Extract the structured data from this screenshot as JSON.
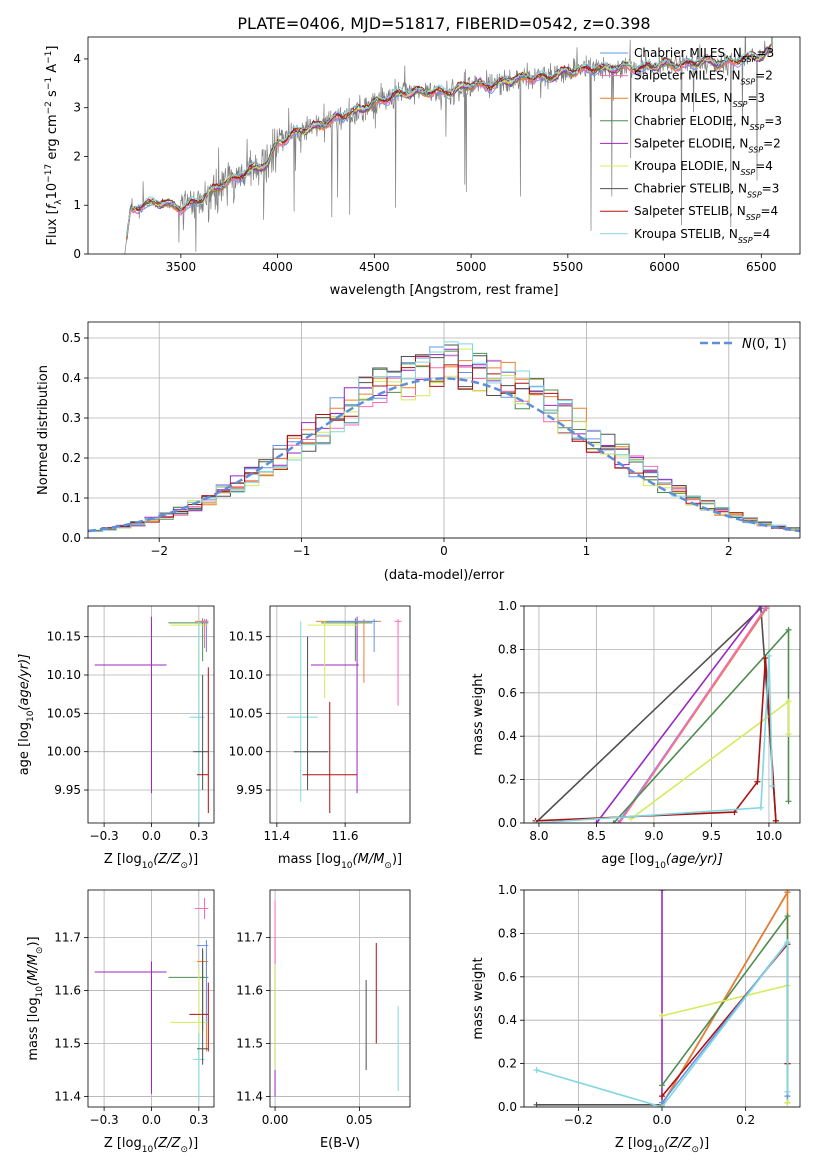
{
  "figure": {
    "title": "PLATE=0406, MJD=51817, FIBERID=0542, z=0.398"
  },
  "colors": {
    "Chabrier MILES": "#6495ed",
    "Salpeter MILES": "#ff69b4",
    "Kroupa MILES": "#ee7f2d",
    "Chabrier ELODIE": "#4e8c4e",
    "Salpeter ELODIE": "#9b27c2",
    "Kroupa ELODIE": "#d4ec5a",
    "Chabrier STELIB": "#505050",
    "Salpeter STELIB": "#b01010",
    "Kroupa STELIB": "#80d8e0",
    "data": "#808080",
    "normal": "#5f8fd9",
    "grid": "#b0b0b0"
  },
  "chart_data": [
    {
      "id": "spectrum",
      "type": "line",
      "xlabel": "wavelength [Angstrom, rest frame]",
      "ylabel_parts": [
        "Flux [",
        "f",
        "λ",
        "10",
        "−17",
        " erg cm",
        "−2",
        " s",
        "−1",
        " A",
        "−1",
        "]"
      ],
      "xlim": [
        3020,
        6700
      ],
      "ylim": [
        0,
        4.45
      ],
      "xticks": [
        3500,
        4000,
        4500,
        5000,
        5500,
        6000,
        6500
      ],
      "yticks": [
        0,
        1,
        2,
        3,
        4
      ],
      "grid": false,
      "legend_position": "upper-right",
      "legend": [
        {
          "model": "Chabrier MILES",
          "label_main": "Chabrier MILES, N",
          "label_sub": "SSP",
          "label_end": "=3"
        },
        {
          "model": "Salpeter MILES",
          "label_main": "Salpeter MILES, N",
          "label_sub": "SSP",
          "label_end": "=2"
        },
        {
          "model": "Kroupa MILES",
          "label_main": "Kroupa MILES, N",
          "label_sub": "SSP",
          "label_end": "=3"
        },
        {
          "model": "Chabrier ELODIE",
          "label_main": "Chabrier ELODIE, N",
          "label_sub": "SSP",
          "label_end": "=3"
        },
        {
          "model": "Salpeter ELODIE",
          "label_main": "Salpeter ELODIE, N",
          "label_sub": "SSP",
          "label_end": "=2"
        },
        {
          "model": "Kroupa ELODIE",
          "label_main": "Kroupa ELODIE, N",
          "label_sub": "SSP",
          "label_end": "=4"
        },
        {
          "model": "Chabrier STELIB",
          "label_main": "Chabrier STELIB, N",
          "label_sub": "SSP",
          "label_end": "=3"
        },
        {
          "model": "Salpeter STELIB",
          "label_main": "Salpeter STELIB, N",
          "label_sub": "SSP",
          "label_end": "=4"
        },
        {
          "model": "Kroupa STELIB",
          "label_main": "Kroupa STELIB, N",
          "label_sub": "SSP",
          "label_end": "=4"
        }
      ],
      "continuum_anchors": {
        "wavelength": [
          3210,
          3240,
          3300,
          3400,
          3500,
          3600,
          3700,
          3800,
          3850,
          3950,
          4000,
          4100,
          4200,
          4300,
          4400,
          4500,
          4600,
          4700,
          4800,
          4900,
          5000,
          5100,
          5200,
          5300,
          5400,
          5500,
          5600,
          5700,
          5800,
          5900,
          6000,
          6100,
          6200,
          6300,
          6400,
          6500,
          6560
        ],
        "flux": [
          0.0,
          0.9,
          1.0,
          1.05,
          0.95,
          1.1,
          1.4,
          1.6,
          1.7,
          1.85,
          2.3,
          2.5,
          2.6,
          2.8,
          2.9,
          3.1,
          3.25,
          3.3,
          3.35,
          3.3,
          3.5,
          3.45,
          3.55,
          3.65,
          3.6,
          3.75,
          3.8,
          3.78,
          3.85,
          3.8,
          3.9,
          3.88,
          3.95,
          3.92,
          4.0,
          4.05,
          4.2
        ]
      }
    },
    {
      "id": "residuals",
      "type": "histogram",
      "xlabel": "(data-model)/error",
      "ylabel": "Normed distribution",
      "xlim": [
        -2.5,
        2.5
      ],
      "ylim": [
        0,
        0.54
      ],
      "xticks": [
        -2,
        -1,
        0,
        1,
        2
      ],
      "yticks": [
        0.0,
        0.1,
        0.2,
        0.3,
        0.4,
        0.5
      ],
      "grid": true,
      "legend_position": "upper-right",
      "legend": [
        {
          "label_sym": "N",
          "label_rest": "(0, 1)"
        }
      ],
      "bin_width": 0.1
    },
    {
      "id": "age_vs_Z",
      "type": "errorbar",
      "xlabel_parts": [
        "Z [log",
        "10",
        "(Z/Z",
        "⊙",
        ")]"
      ],
      "ylabel_parts": [
        "age  [log",
        "10",
        "(age/yr)]"
      ],
      "xlim": [
        -0.335,
        0.33
      ],
      "ylim": [
        9.907,
        10.19
      ],
      "xticks": [
        -0.25,
        0.0,
        0.25
      ],
      "yticks": [
        9.95,
        10.0,
        10.05,
        10.1,
        10.15
      ],
      "grid": true,
      "points": [
        {
          "model": "Salpeter ELODIE",
          "x": 0.0,
          "xerr": [
            0.3,
            0.08
          ],
          "y": 10.113,
          "yerr": [
            0.167,
            0.063
          ]
        },
        {
          "model": "Chabrier ELODIE",
          "x": 0.27,
          "xerr": [
            0.18,
            0.03
          ],
          "y": 10.168,
          "yerr": [
            0.05,
            0.006
          ]
        },
        {
          "model": "Kroupa MILES",
          "x": 0.29,
          "xerr": [
            0.06,
            0.01
          ],
          "y": 10.17,
          "yerr": [
            0.04,
            0.003
          ]
        },
        {
          "model": "Chabrier MILES",
          "x": 0.29,
          "xerr": [
            0.03,
            0.01
          ],
          "y": 10.17,
          "yerr": [
            0.04,
            0.003
          ]
        },
        {
          "model": "Kroupa ELODIE",
          "x": 0.25,
          "xerr": [
            0.15,
            0.05
          ],
          "y": 10.165,
          "yerr": [
            0.095,
            0.005
          ]
        },
        {
          "model": "Salpeter MILES",
          "x": 0.28,
          "xerr": [
            0.03,
            0.02
          ],
          "y": 10.17,
          "yerr": [
            0.035,
            0.003
          ]
        },
        {
          "model": "Kroupa STELIB",
          "x": 0.25,
          "xerr": [
            0.05,
            0.03
          ],
          "y": 10.045,
          "yerr": [
            0.17,
            0.125
          ]
        },
        {
          "model": "Chabrier STELIB",
          "x": 0.27,
          "xerr": [
            0.05,
            0.03
          ],
          "y": 10.0,
          "yerr": [
            0.05,
            0.1
          ]
        },
        {
          "model": "Salpeter STELIB",
          "x": 0.3,
          "xerr": [
            0.06,
            0.0
          ],
          "y": 9.97,
          "yerr": [
            0.05,
            0.14
          ]
        }
      ]
    },
    {
      "id": "age_vs_mass",
      "type": "errorbar",
      "xlabel_parts": [
        "mass [log",
        "10",
        "(M/M",
        "⊙",
        ")]"
      ],
      "xlim": [
        11.38,
        11.79
      ],
      "ylim": [
        9.907,
        10.19
      ],
      "xticks": [
        11.4,
        11.6
      ],
      "yticks": [
        9.95,
        10.0,
        10.05,
        10.1,
        10.15
      ],
      "grid": true,
      "points": [
        {
          "model": "Salpeter ELODIE",
          "x": 11.635,
          "xerr": [
            0.135,
            0.005
          ],
          "y": 10.113,
          "yerr": [
            0.167,
            0.063
          ]
        },
        {
          "model": "Chabrier ELODIE",
          "x": 11.63,
          "xerr": [
            0.1,
            0.05
          ],
          "y": 10.168,
          "yerr": [
            0.05,
            0.006
          ]
        },
        {
          "model": "Kroupa MILES",
          "x": 11.655,
          "xerr": [
            0.14,
            0.05
          ],
          "y": 10.17,
          "yerr": [
            0.08,
            0.003
          ]
        },
        {
          "model": "Chabrier MILES",
          "x": 11.685,
          "xerr": [
            0.14,
            0.01
          ],
          "y": 10.17,
          "yerr": [
            0.04,
            0.003
          ]
        },
        {
          "model": "Kroupa ELODIE",
          "x": 11.54,
          "xerr": [
            0.05,
            0.1
          ],
          "y": 10.165,
          "yerr": [
            0.095,
            0.005
          ]
        },
        {
          "model": "Salpeter MILES",
          "x": 11.755,
          "xerr": [
            0.01,
            0.01
          ],
          "y": 10.17,
          "yerr": [
            0.11,
            0.003
          ]
        },
        {
          "model": "Kroupa STELIB",
          "x": 11.47,
          "xerr": [
            0.04,
            0.05
          ],
          "y": 10.045,
          "yerr": [
            0.11,
            0.125
          ]
        },
        {
          "model": "Chabrier STELIB",
          "x": 11.49,
          "xerr": [
            0.04,
            0.06
          ],
          "y": 10.0,
          "yerr": [
            0.05,
            0.15
          ]
        },
        {
          "model": "Salpeter STELIB",
          "x": 11.555,
          "xerr": [
            0.08,
            0.08
          ],
          "y": 9.97,
          "yerr": [
            0.05,
            0.095
          ]
        }
      ]
    },
    {
      "id": "weight_vs_age",
      "type": "line",
      "xlabel_parts": [
        "age  [log",
        "10",
        "(age/yr)]"
      ],
      "ylabel": "mass weight",
      "xlim": [
        7.87,
        10.27
      ],
      "ylim": [
        0,
        1.0
      ],
      "xticks": [
        8.0,
        8.5,
        9.0,
        9.5,
        10.0
      ],
      "yticks": [
        0.0,
        0.2,
        0.4,
        0.6,
        0.8,
        1.0
      ],
      "grid": true,
      "series": [
        {
          "model": "Chabrier STELIB",
          "x": [
            7.97,
            9.93,
            10.06
          ],
          "y": [
            0.0,
            0.99,
            0.01
          ]
        },
        {
          "model": "Salpeter ELODIE",
          "x": [
            8.5,
            9.93
          ],
          "y": [
            0.0,
            1.0
          ]
        },
        {
          "model": "Kroupa MILES",
          "x": [
            8.7,
            9.98
          ],
          "y": [
            0.0,
            0.99
          ]
        },
        {
          "model": "Chabrier MILES",
          "x": [
            8.69,
            9.97
          ],
          "y": [
            0.0,
            0.99
          ]
        },
        {
          "model": "Salpeter MILES",
          "x": [
            8.7,
            9.98
          ],
          "y": [
            0.0,
            1.0
          ]
        },
        {
          "model": "Chabrier ELODIE",
          "x": [
            8.65,
            10.17,
            10.17
          ],
          "y": [
            0.0,
            0.89,
            0.1
          ]
        },
        {
          "model": "Kroupa ELODIE",
          "x": [
            8.8,
            10.17,
            10.17
          ],
          "y": [
            0.02,
            0.56,
            0.41
          ]
        },
        {
          "model": "Salpeter STELIB",
          "x": [
            7.97,
            9.7,
            9.9,
            9.97,
            10.06
          ],
          "y": [
            0.01,
            0.05,
            0.19,
            0.76,
            0.01
          ]
        },
        {
          "model": "Kroupa STELIB",
          "x": [
            7.97,
            9.93,
            10.0,
            10.03
          ],
          "y": [
            0.0,
            0.07,
            0.77,
            0.17
          ]
        }
      ]
    },
    {
      "id": "mass_vs_Z",
      "type": "errorbar",
      "xlabel_parts": [
        "Z [log",
        "10",
        "(Z/Z",
        "⊙",
        ")]"
      ],
      "ylabel_parts": [
        "mass [log",
        "10",
        "(M/M",
        "⊙",
        ")]"
      ],
      "xlim": [
        -0.335,
        0.33
      ],
      "ylim": [
        11.38,
        11.79
      ],
      "xticks": [
        -0.25,
        0.0,
        0.25
      ],
      "yticks": [
        11.4,
        11.5,
        11.6,
        11.7
      ],
      "grid": true,
      "points": [
        {
          "model": "Salpeter ELODIE",
          "x": 0.0,
          "xerr": [
            0.3,
            0.08
          ],
          "y": 11.635,
          "yerr": [
            0.23,
            0.02
          ]
        },
        {
          "model": "Chabrier ELODIE",
          "x": 0.27,
          "xerr": [
            0.18,
            0.03
          ],
          "y": 11.625,
          "yerr": [
            0.1,
            0.05
          ]
        },
        {
          "model": "Kroupa MILES",
          "x": 0.29,
          "xerr": [
            0.05,
            0.01
          ],
          "y": 11.655,
          "yerr": [
            0.17,
            0.04
          ]
        },
        {
          "model": "Chabrier MILES",
          "x": 0.29,
          "xerr": [
            0.05,
            0.01
          ],
          "y": 11.685,
          "yerr": [
            0.15,
            0.01
          ]
        },
        {
          "model": "Kroupa ELODIE",
          "x": 0.25,
          "xerr": [
            0.15,
            0.05
          ],
          "y": 11.54,
          "yerr": [
            0.07,
            0.1
          ]
        },
        {
          "model": "Salpeter MILES",
          "x": 0.28,
          "xerr": [
            0.05,
            0.02
          ],
          "y": 11.755,
          "yerr": [
            0.02,
            0.02
          ]
        },
        {
          "model": "Kroupa STELIB",
          "x": 0.25,
          "xerr": [
            0.03,
            0.03
          ],
          "y": 11.47,
          "yerr": [
            0.08,
            0.05
          ]
        },
        {
          "model": "Chabrier STELIB",
          "x": 0.27,
          "xerr": [
            0.03,
            0.03
          ],
          "y": 11.49,
          "yerr": [
            0.03,
            0.19
          ]
        },
        {
          "model": "Salpeter STELIB",
          "x": 0.3,
          "xerr": [
            0.1,
            0.0
          ],
          "y": 11.555,
          "yerr": [
            0.07,
            0.06
          ]
        }
      ]
    },
    {
      "id": "mass_vs_ebv",
      "type": "errorbar",
      "xlabel": "E(B-V)",
      "xlim": [
        -0.003,
        0.08
      ],
      "ylim": [
        11.38,
        11.79
      ],
      "xticks": [
        0.0,
        0.05
      ],
      "yticks": [
        11.4,
        11.5,
        11.6,
        11.7
      ],
      "grid": true,
      "points": [
        {
          "model": "Salpeter ELODIE",
          "x": 0.0,
          "y": 11.6,
          "yerr": [
            0.2,
            0.1
          ]
        },
        {
          "model": "Kroupa ELODIE",
          "x": 0.0,
          "y": 11.55,
          "yerr": [
            0.1,
            0.12
          ]
        },
        {
          "model": "Salpeter MILES",
          "x": 0.0,
          "y": 11.7,
          "yerr": [
            0.05,
            0.07
          ]
        },
        {
          "model": "Chabrier STELIB",
          "x": 0.054,
          "y": 11.53,
          "yerr": [
            0.08,
            0.09
          ]
        },
        {
          "model": "Salpeter STELIB",
          "x": 0.06,
          "y": 11.59,
          "yerr": [
            0.09,
            0.1
          ]
        },
        {
          "model": "Kroupa STELIB",
          "x": 0.073,
          "y": 11.49,
          "yerr": [
            0.08,
            0.08
          ]
        }
      ]
    },
    {
      "id": "weight_vs_Z",
      "type": "line",
      "xlabel_parts": [
        "Z [log",
        "10",
        "(Z/Z",
        "⊙",
        ")]"
      ],
      "ylabel": "mass weight",
      "xlim": [
        -0.33,
        0.33
      ],
      "ylim": [
        0,
        1.0
      ],
      "xticks": [
        -0.2,
        0.0,
        0.2
      ],
      "yticks": [
        0.0,
        0.2,
        0.4,
        0.6,
        0.8,
        1.0
      ],
      "grid": true,
      "series": [
        {
          "model": "Salpeter ELODIE",
          "x": [
            0.0,
            0.0
          ],
          "y": [
            0.0,
            1.0
          ]
        },
        {
          "model": "Chabrier STELIB",
          "x": [
            -0.3,
            0.0,
            0.3
          ],
          "y": [
            0.01,
            0.01,
            0.99
          ]
        },
        {
          "model": "Kroupa MILES",
          "x": [
            0.0,
            0.3,
            0.3
          ],
          "y": [
            0.01,
            0.99,
            0.2
          ]
        },
        {
          "model": "Chabrier ELODIE",
          "x": [
            0.0,
            0.3,
            0.3
          ],
          "y": [
            0.1,
            0.88,
            0.02
          ]
        },
        {
          "model": "Kroupa ELODIE",
          "x": [
            0.0,
            0.3,
            0.3
          ],
          "y": [
            0.42,
            0.56,
            0.02
          ]
        },
        {
          "model": "Salpeter STELIB",
          "x": [
            0.0,
            0.3,
            0.3
          ],
          "y": [
            0.05,
            0.75,
            0.2
          ]
        },
        {
          "model": "Chabrier MILES",
          "x": [
            0.0,
            0.3,
            0.3
          ],
          "y": [
            0.02,
            0.76,
            0.05
          ]
        },
        {
          "model": "Kroupa STELIB",
          "x": [
            -0.3,
            0.0,
            0.3,
            0.3
          ],
          "y": [
            0.17,
            0.0,
            0.76,
            0.07
          ]
        }
      ]
    }
  ]
}
